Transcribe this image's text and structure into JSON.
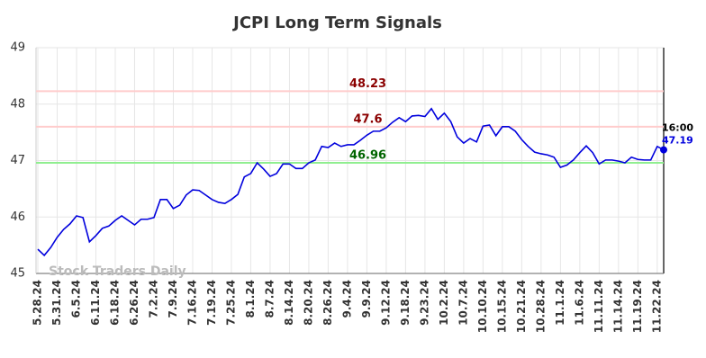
{
  "chart_data": {
    "type": "line",
    "title": "JCPI Long Term Signals",
    "watermark": "Stock Traders Daily",
    "color": "#0000dd",
    "grid": true,
    "ylim": [
      45,
      49
    ],
    "yticks": [
      45,
      46,
      47,
      48,
      49
    ],
    "categories": [
      "5.28.24",
      null,
      null,
      "5.31.24",
      null,
      null,
      "6.5.24",
      null,
      null,
      "6.11.24",
      null,
      null,
      "6.18.24",
      null,
      null,
      "6.26.24",
      null,
      null,
      "7.2.24",
      null,
      null,
      "7.9.24",
      null,
      null,
      "7.16.24",
      null,
      null,
      "7.19.24",
      null,
      null,
      "7.25.24",
      null,
      null,
      "8.1.24",
      null,
      null,
      "8.7.24",
      null,
      null,
      "8.14.24",
      null,
      null,
      "8.20.24",
      null,
      null,
      "8.26.24",
      null,
      null,
      "9.4.24",
      null,
      null,
      "9.9.24",
      null,
      null,
      "9.12.24",
      null,
      null,
      "9.18.24",
      null,
      null,
      "9.23.24",
      null,
      null,
      "10.2.24",
      null,
      null,
      "10.7.24",
      null,
      null,
      "10.10.24",
      null,
      null,
      "10.15.24",
      null,
      null,
      "10.21.24",
      null,
      null,
      "10.28.24",
      null,
      null,
      "11.1.24",
      null,
      null,
      "11.6.24",
      null,
      null,
      "11.11.24",
      null,
      null,
      "11.14.24",
      null,
      null,
      "11.19.24",
      null,
      null,
      "11.22.24",
      null
    ],
    "values": [
      45.43,
      45.32,
      45.46,
      45.64,
      45.78,
      45.88,
      46.02,
      45.99,
      45.56,
      45.67,
      45.8,
      45.84,
      45.94,
      46.02,
      45.94,
      45.86,
      45.96,
      45.96,
      45.99,
      46.31,
      46.31,
      46.15,
      46.21,
      46.39,
      46.48,
      46.47,
      46.39,
      46.31,
      46.26,
      46.24,
      46.31,
      46.4,
      46.71,
      46.77,
      46.96,
      46.85,
      46.72,
      46.77,
      46.94,
      46.94,
      46.86,
      46.86,
      46.96,
      47.01,
      47.25,
      47.23,
      47.31,
      47.25,
      47.28,
      47.28,
      47.36,
      47.45,
      47.52,
      47.52,
      47.58,
      47.68,
      47.76,
      47.69,
      47.79,
      47.8,
      47.78,
      47.92,
      47.73,
      47.84,
      47.69,
      47.42,
      47.31,
      47.39,
      47.33,
      47.61,
      47.63,
      47.44,
      47.6,
      47.6,
      47.52,
      47.37,
      47.25,
      47.15,
      47.12,
      47.1,
      47.06,
      46.88,
      46.92,
      47.01,
      47.14,
      47.26,
      47.14,
      46.94,
      47.01,
      47.01,
      46.99,
      46.96,
      47.06,
      47.02,
      47.01,
      47.01,
      47.25,
      47.19
    ],
    "last_time_label": "16:00",
    "hlines": [
      {
        "value": 48.23,
        "color": "#ffcccc",
        "label_color": "#8b0000"
      },
      {
        "value": 47.6,
        "color": "#ffcccc",
        "label_color": "#8b0000"
      },
      {
        "value": 46.96,
        "color": "#90ee90",
        "label_color": "#006400"
      }
    ]
  }
}
